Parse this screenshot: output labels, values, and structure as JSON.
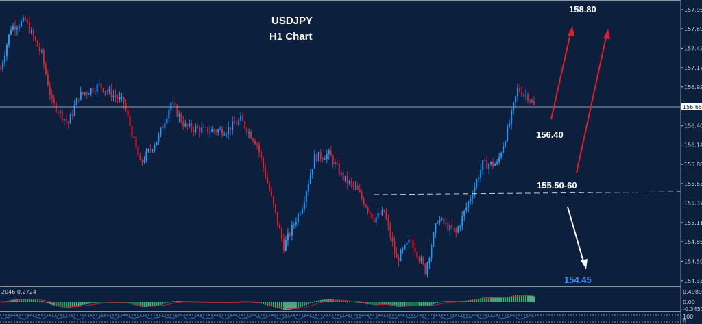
{
  "chart_data": {
    "type": "candlestick",
    "title": "USDJPY",
    "subtitle": "H1 Chart",
    "symbol": "USDJPY",
    "timeframe": "H1",
    "y_ticks": [
      "157.950",
      "157.695",
      "157.435",
      "157.175",
      "156.920",
      "156.658",
      "156.400",
      "156.145",
      "155.885",
      "155.630",
      "155.370",
      "155.110",
      "154.855",
      "154.595",
      "154.335"
    ],
    "ylim": [
      154.3,
      158.02
    ],
    "current_price": "156.658",
    "approx_close_path": [
      [
        0,
        157.16
      ],
      [
        5,
        157.71
      ],
      [
        12,
        157.8
      ],
      [
        20,
        157.35
      ],
      [
        25,
        156.71
      ],
      [
        33,
        156.43
      ],
      [
        38,
        156.8
      ],
      [
        48,
        156.94
      ],
      [
        60,
        156.71
      ],
      [
        68,
        155.89
      ],
      [
        77,
        156.25
      ],
      [
        83,
        156.71
      ],
      [
        90,
        156.39
      ],
      [
        100,
        156.34
      ],
      [
        110,
        156.34
      ],
      [
        117,
        156.48
      ],
      [
        125,
        156.16
      ],
      [
        132,
        155.43
      ],
      [
        138,
        154.79
      ],
      [
        147,
        155.34
      ],
      [
        153,
        155.98
      ],
      [
        160,
        156.02
      ],
      [
        167,
        155.7
      ],
      [
        173,
        155.57
      ],
      [
        182,
        155.16
      ],
      [
        187,
        155.25
      ],
      [
        193,
        154.61
      ],
      [
        200,
        154.88
      ],
      [
        207,
        154.47
      ],
      [
        213,
        155.16
      ],
      [
        222,
        154.97
      ],
      [
        230,
        155.52
      ],
      [
        235,
        155.89
      ],
      [
        242,
        155.89
      ],
      [
        248,
        156.43
      ],
      [
        252,
        156.89
      ],
      [
        257,
        156.8
      ],
      [
        260,
        156.66
      ]
    ],
    "colors": {
      "background": "#0c1f3c",
      "up": "#1e9bff",
      "down": "#e0202a",
      "grid": "#c8cdd6"
    },
    "annotations": {
      "target_high": "158.80",
      "resistance": "156.40",
      "support_zone": "155.50-60",
      "target_low": "154.45"
    },
    "indicator_macd": {
      "label": "2046 0.2724",
      "ticks": [
        "0.4989",
        "0.00",
        "-0.3457"
      ],
      "colors": {
        "histogram": "#3cb878",
        "signal": "#c0202a"
      }
    },
    "indicator_lower": {
      "ticks": [
        "100",
        "0"
      ]
    }
  }
}
